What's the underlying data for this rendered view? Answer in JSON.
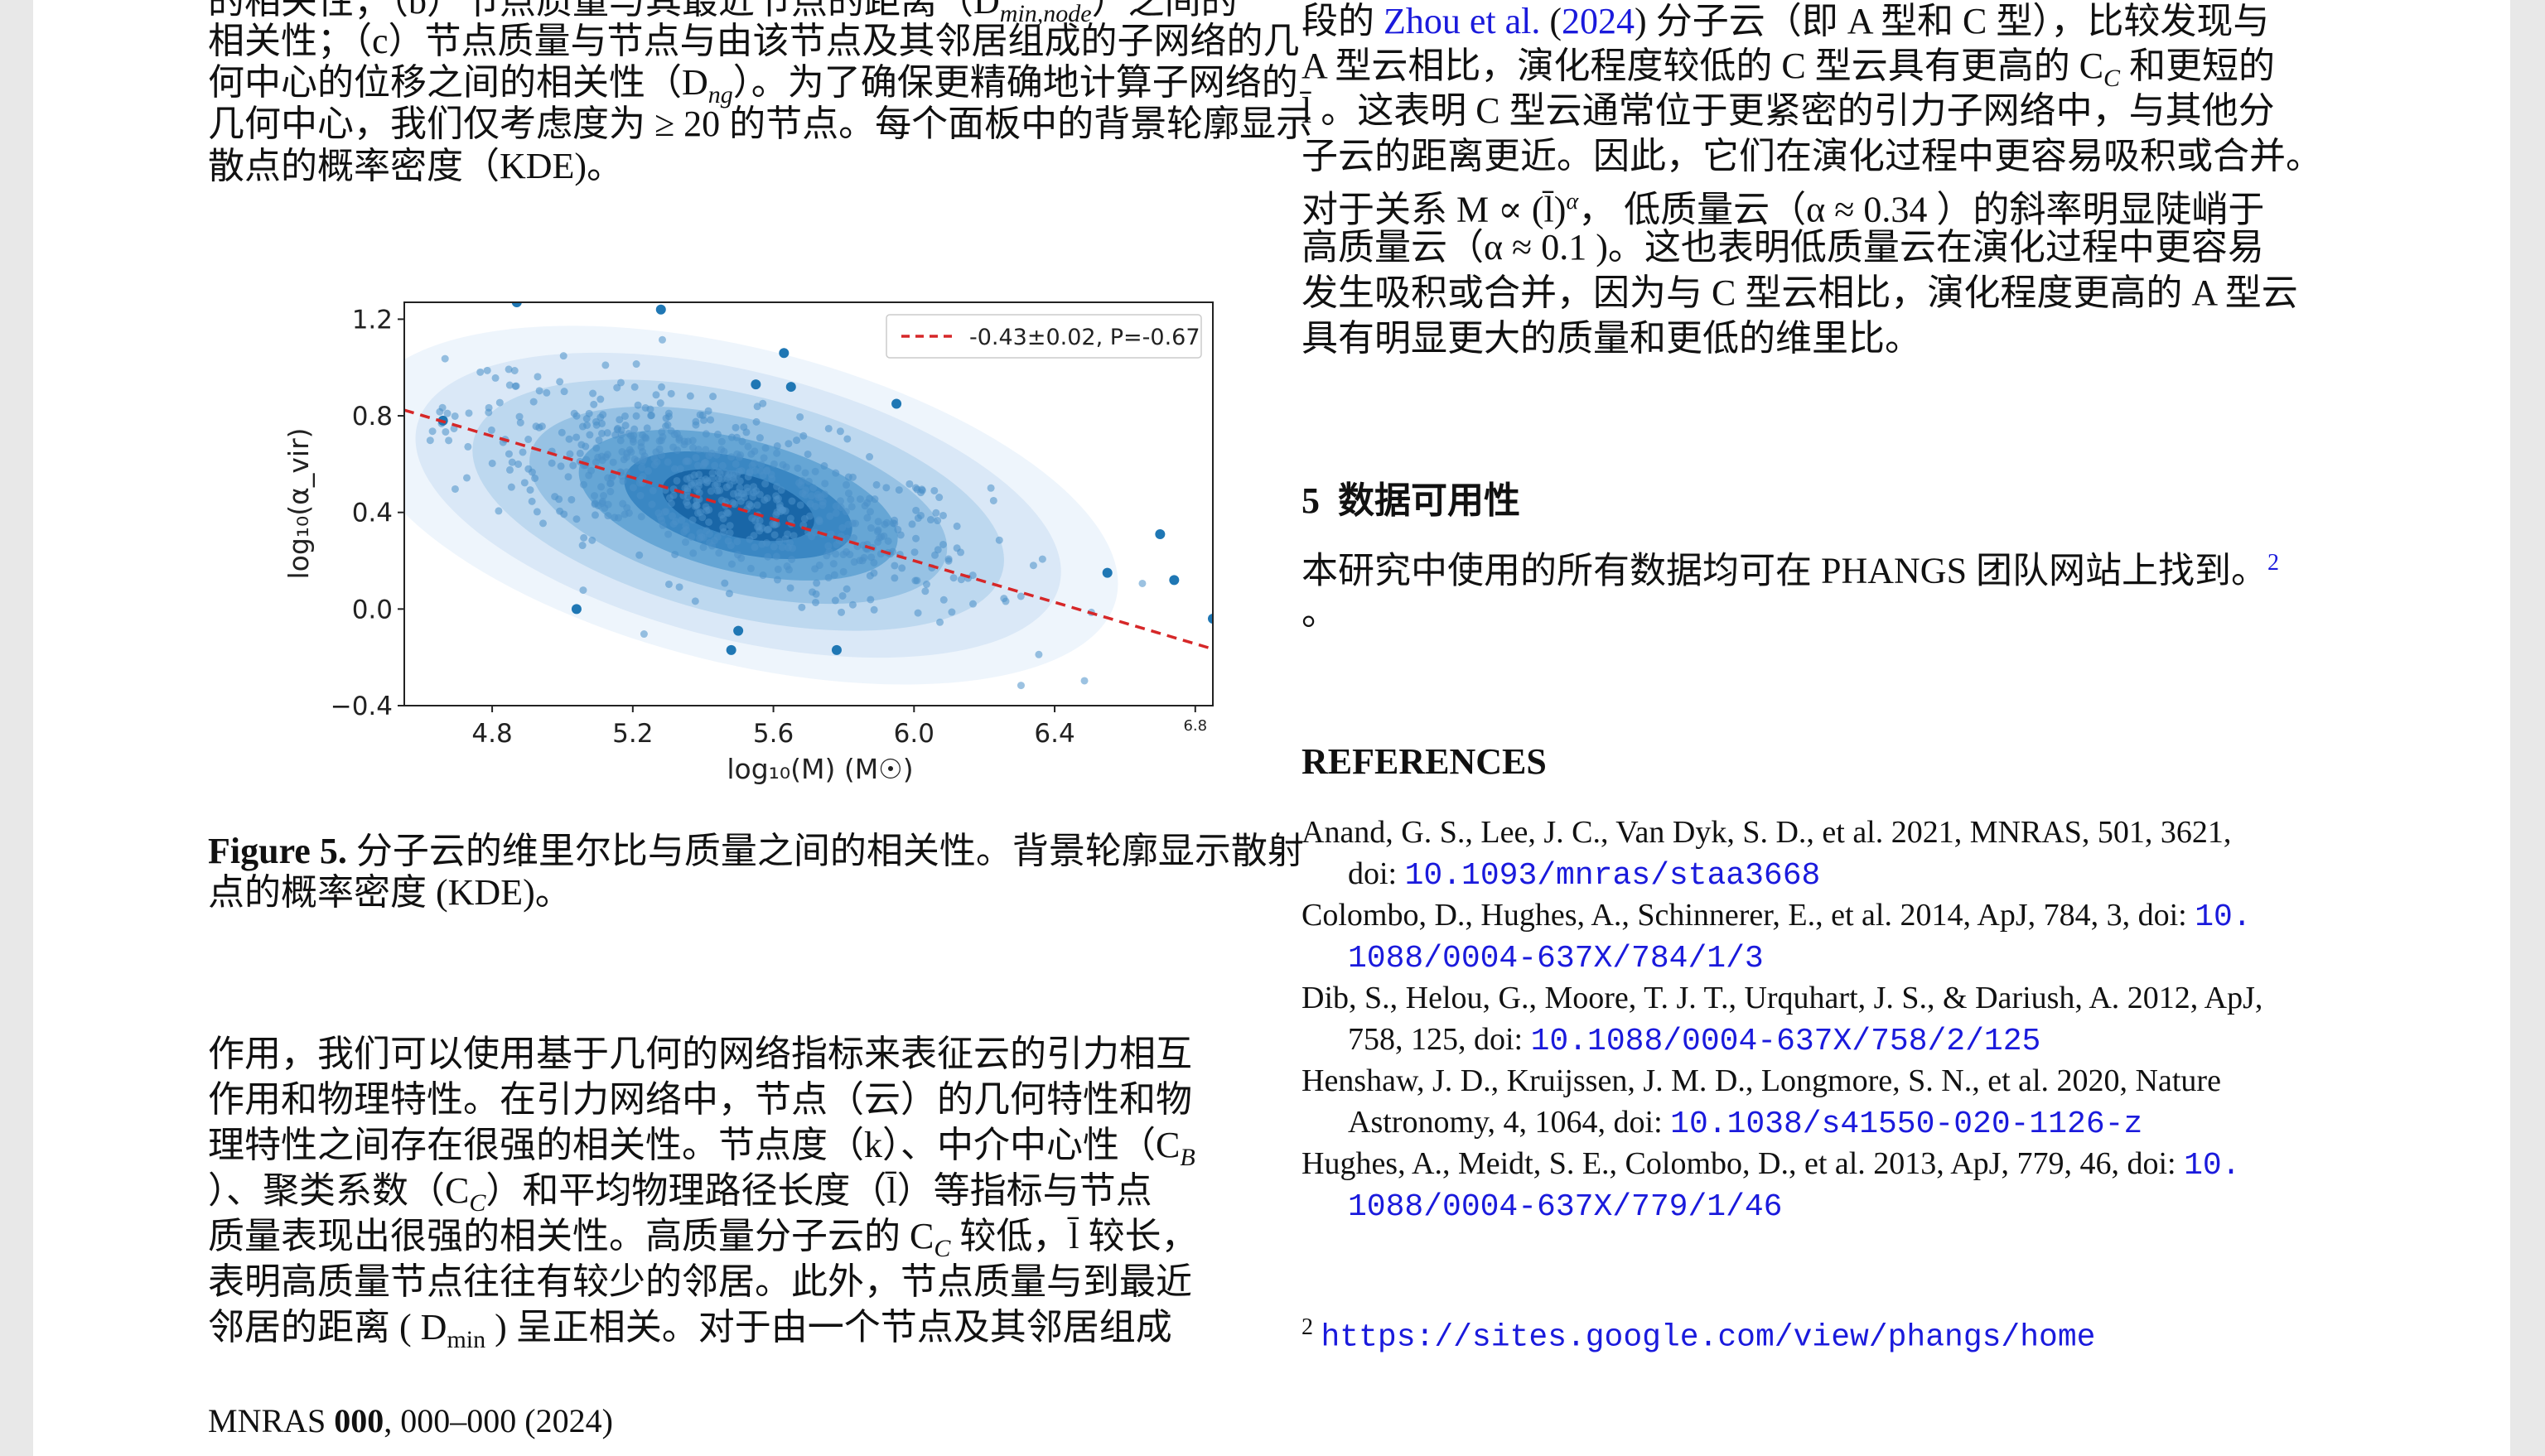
{
  "left_column": {
    "top_lines": [
      "的相关性；（b）节点质量与其最近节点的距离（D",
      "相关性；（c）节点质量与节点与由该节点及其邻居组成的子网络的几",
      "何中心的位移之间的相关性（D",
      "几何中心，我们仅考虑度为 ≥ 20 的节点。每个面板中的背景轮廓显示",
      "散点的概率密度（KDE)。"
    ],
    "top_line0_sub": "min,node",
    "top_line0_tail": "）之间的",
    "top_line2_sub": "ng",
    "top_line2_tail": "）。为了确保更精确地计算子网络的",
    "figure_caption_label": "Figure 5.",
    "figure_caption_line1": " 分子云的维里尔比与质量之间的相关性。背景轮廓显示散射",
    "figure_caption_line2": "点的概率密度 (KDE)。",
    "body_lines": [
      "作用，我们可以使用基于几何的网络指标来表征云的引力相互",
      "作用和物理特性。在引力网络中，节点（云）的几何特性和物",
      "理特性之间存在很强的相关性。节点度（k）、中介中心性（C",
      "）、聚类系数（C",
      "质量表现出很强的相关性。高质量分子云的 C",
      "表明高质量节点往往有较少的邻居。此外，节点质量与到最近",
      "邻居的距离 ( D"
    ],
    "body_line2_sub": "B",
    "body_line3_sub": "C",
    "body_line3_tail": "）和平均物理路径长度（l̄）等指标与节点",
    "body_line4_sub": "C",
    "body_line4_tail": " 较低，l̄ 较长，",
    "body_line6_sub": "min",
    "body_line6_tail": " ) 呈正相关。对于由一个节点及其邻居组成"
  },
  "right_column": {
    "top_lines_prefix": "段的 ",
    "zhou_ref": "Zhou et al.",
    "zhou_year": "2024",
    "top_line0_tail": " 分子云（即 A 型和 C 型），比较发现与",
    "top_line1_a": "A 型云相比，演化程度较低的 C 型云具有更高的 C",
    "top_line1_sub": "C",
    "top_line1_b": " 和更短的",
    "top_line2": "l̄ 。这表明 C 型云通常位于更紧密的引力子网络中，与其他分",
    "top_line3": "子云的距离更近。因此，它们在演化过程中更容易吸积或合并。",
    "top_line4_a": "对于关系 M ∝ (l̄)",
    "top_line4_sup": "α",
    "top_line4_b": "， 低质量云（α ≈ 0.34 ）的斜率明显陡峭于",
    "top_line5": "高质量云（α ≈ 0.1 )。这也表明低质量云在演化过程中更容易",
    "top_line6": "发生吸积或合并，因为与 C 型云相比，演化程度更高的 A 型云",
    "top_line7": "具有明显更大的质量和更低的维里比。",
    "section_number": "5",
    "section_title": "数据可用性",
    "data_text": "本研究中使用的所有数据均可在 PHANGS 团队网站上找到。",
    "footnote_mark": "2",
    "data_text_end": "。",
    "references_title": "REFERENCES",
    "references": [
      {
        "text": "Anand, G. S., Lee, J. C., Van Dyk, S. D., et al. 2021, MNRAS, 501, 3621,",
        "doi_prefix": "doi: ",
        "doi": "10.1093/mnras/staa3668",
        "doi_cont": ""
      },
      {
        "text": "Colombo, D., Hughes, A., Schinnerer, E., et al. 2014, ApJ, 784, 3, doi: ",
        "doi_prefix": "",
        "doi": "10.",
        "doi_cont": "1088/0004-637X/784/1/3"
      },
      {
        "text": "Dib, S., Helou, G., Moore, T. J. T., Urquhart, J. S., & Dariush, A. 2012, ApJ,",
        "doi_prefix": "758, 125, doi: ",
        "doi": "10.1088/0004-637X/758/2/125",
        "doi_cont": ""
      },
      {
        "text": "Henshaw, J. D., Kruijssen, J. M. D., Longmore, S. N., et al. 2020, Nature",
        "doi_prefix": "Astronomy, 4, 1064, doi: ",
        "doi": "10.1038/s41550-020-1126-z",
        "doi_cont": ""
      },
      {
        "text": "Hughes, A., Meidt, S. E., Colombo, D., et al. 2013, ApJ, 779, 46, doi: ",
        "doi_prefix": "",
        "doi": "10.",
        "doi_cont": "1088/0004-637X/779/1/46"
      }
    ],
    "footnote_number": "2",
    "footnote_url": "https://sites.google.com/view/phangs/home"
  },
  "footer": {
    "journal": "MNRAS ",
    "volume": "000",
    "pages": ", 000–000 (2024)"
  },
  "chart_data": {
    "type": "scatter",
    "title": "",
    "xlabel": "log₁₀(M) (M☉)",
    "ylabel": "log₁₀(α_vir)",
    "xlim": [
      4.55,
      6.85
    ],
    "ylim": [
      -0.4,
      1.27
    ],
    "x_ticks": [
      "4.8",
      "5.2",
      "5.6",
      "6.0",
      "6.4",
      "6.8"
    ],
    "y_ticks": [
      "1.2",
      "0.8",
      "0.4",
      "0.0",
      "−0.4"
    ],
    "legend": {
      "label": "-0.43±0.02, P=-0.67",
      "position": "top-right",
      "style": "red dashed line"
    },
    "fit_line": {
      "slope": -0.43,
      "intercept": 2.78,
      "color": "#d62728"
    },
    "point_color": "#1f77b4",
    "outlier_points": [
      {
        "x": 4.87,
        "y": 1.27
      },
      {
        "x": 5.28,
        "y": 1.24
      },
      {
        "x": 5.63,
        "y": 1.06
      },
      {
        "x": 5.55,
        "y": 0.93
      },
      {
        "x": 5.65,
        "y": 0.92
      },
      {
        "x": 5.95,
        "y": 0.85
      },
      {
        "x": 4.66,
        "y": 0.78
      },
      {
        "x": 6.7,
        "y": 0.31
      },
      {
        "x": 6.55,
        "y": 0.15
      },
      {
        "x": 6.74,
        "y": 0.12
      },
      {
        "x": 6.85,
        "y": -0.04
      },
      {
        "x": 6.88,
        "y": -0.17
      },
      {
        "x": 5.04,
        "y": 0.0
      },
      {
        "x": 5.5,
        "y": -0.09
      },
      {
        "x": 5.48,
        "y": -0.17
      },
      {
        "x": 5.78,
        "y": -0.17
      }
    ],
    "kde_center": {
      "x": 5.45,
      "y": 0.38
    }
  }
}
